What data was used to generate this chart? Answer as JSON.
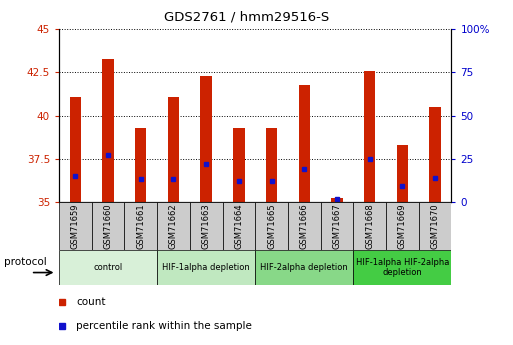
{
  "title": "GDS2761 / hmm29516-S",
  "samples": [
    "GSM71659",
    "GSM71660",
    "GSM71661",
    "GSM71662",
    "GSM71663",
    "GSM71664",
    "GSM71665",
    "GSM71666",
    "GSM71667",
    "GSM71668",
    "GSM71669",
    "GSM71670"
  ],
  "count_values": [
    41.1,
    43.3,
    39.3,
    41.1,
    42.3,
    39.3,
    39.3,
    41.8,
    35.2,
    42.6,
    38.3,
    40.5
  ],
  "percentile_values": [
    36.5,
    37.7,
    36.3,
    36.3,
    37.2,
    36.2,
    36.2,
    36.9,
    35.15,
    37.5,
    35.9,
    36.4
  ],
  "ylim_left": [
    35,
    45
  ],
  "ylim_right": [
    0,
    100
  ],
  "yticks_left": [
    35,
    37.5,
    40,
    42.5,
    45
  ],
  "yticks_right": [
    0,
    25,
    50,
    75,
    100
  ],
  "ytick_labels_left": [
    "35",
    "37.5",
    "40",
    "42.5",
    "45"
  ],
  "ytick_labels_right": [
    "0",
    "25",
    "50",
    "75",
    "100%"
  ],
  "bar_color": "#cc2200",
  "dot_color": "#1111cc",
  "bar_width": 0.35,
  "proto_info": [
    {
      "label": "control",
      "indices": [
        0,
        1,
        2
      ],
      "color": "#d8f0d8"
    },
    {
      "label": "HIF-1alpha depletion",
      "indices": [
        3,
        4,
        5
      ],
      "color": "#c0e8c0"
    },
    {
      "label": "HIF-2alpha depletion",
      "indices": [
        6,
        7,
        8
      ],
      "color": "#88d888"
    },
    {
      "label": "HIF-1alpha HIF-2alpha\ndepletion",
      "indices": [
        9,
        10,
        11
      ],
      "color": "#44cc44"
    }
  ],
  "legend_count_label": "count",
  "legend_percentile_label": "percentile rank within the sample",
  "left_tick_color": "#cc2200",
  "right_tick_color": "#0000cc"
}
